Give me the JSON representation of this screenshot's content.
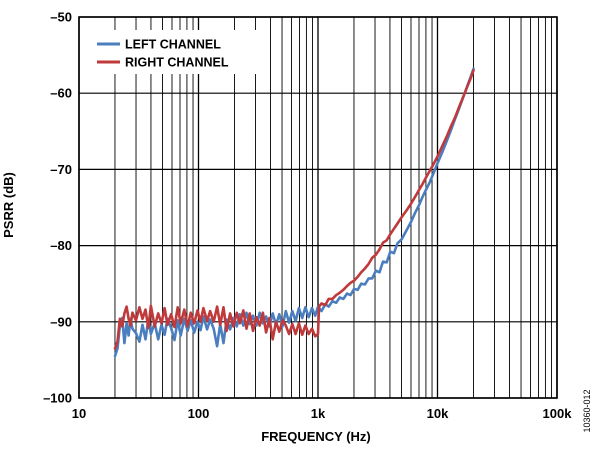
{
  "chart_data": {
    "type": "line",
    "title": "",
    "xlabel": "FREQUENCY (Hz)",
    "ylabel": "PSRR (dB)",
    "x_scale": "log",
    "xlim": [
      10,
      100000
    ],
    "ylim": [
      -100,
      -50
    ],
    "x_ticks": [
      {
        "value": 10,
        "label": "10"
      },
      {
        "value": 100,
        "label": "100"
      },
      {
        "value": 1000,
        "label": "1k"
      },
      {
        "value": 10000,
        "label": "10k"
      },
      {
        "value": 100000,
        "label": "100k"
      }
    ],
    "y_ticks": [
      {
        "value": -50,
        "label": "–50"
      },
      {
        "value": -60,
        "label": "–60"
      },
      {
        "value": -70,
        "label": "–70"
      },
      {
        "value": -80,
        "label": "–80"
      },
      {
        "value": -90,
        "label": "–90"
      },
      {
        "value": -100,
        "label": "–100"
      }
    ],
    "grid": true,
    "legend_position": "top-left",
    "figure_id": "10360-012",
    "series": [
      {
        "name": "LEFT CHANNEL",
        "color": "#4a7ebf",
        "points": [
          [
            20,
            -94.5
          ],
          [
            21,
            -93.5
          ],
          [
            22,
            -90.5
          ],
          [
            23,
            -89.5
          ],
          [
            24,
            -92.8
          ],
          [
            25,
            -90.2
          ],
          [
            26,
            -91.8
          ],
          [
            27,
            -89.6
          ],
          [
            28,
            -90.9
          ],
          [
            30,
            -91.5
          ],
          [
            32,
            -92.6
          ],
          [
            34,
            -90.4
          ],
          [
            36,
            -92.3
          ],
          [
            38,
            -89.7
          ],
          [
            40,
            -91.6
          ],
          [
            43,
            -90.2
          ],
          [
            46,
            -92.3
          ],
          [
            49,
            -90.4
          ],
          [
            52,
            -91.7
          ],
          [
            55,
            -89.6
          ],
          [
            59,
            -90.8
          ],
          [
            63,
            -92.4
          ],
          [
            67,
            -89.8
          ],
          [
            71,
            -91.8
          ],
          [
            76,
            -89.6
          ],
          [
            81,
            -91.2
          ],
          [
            86,
            -89.8
          ],
          [
            92,
            -91.4
          ],
          [
            98,
            -90.0
          ],
          [
            104,
            -91.1
          ],
          [
            110,
            -89.3
          ],
          [
            118,
            -91.0
          ],
          [
            125,
            -89.7
          ],
          [
            134,
            -90.9
          ],
          [
            143,
            -93.2
          ],
          [
            152,
            -90.3
          ],
          [
            162,
            -92.8
          ],
          [
            172,
            -89.7
          ],
          [
            184,
            -91.0
          ],
          [
            196,
            -89.5
          ],
          [
            209,
            -90.6
          ],
          [
            222,
            -89.0
          ],
          [
            237,
            -90.5
          ],
          [
            252,
            -88.8
          ],
          [
            268,
            -90.3
          ],
          [
            286,
            -89.2
          ],
          [
            305,
            -90.5
          ],
          [
            325,
            -88.8
          ],
          [
            346,
            -90.2
          ],
          [
            368,
            -89.3
          ],
          [
            392,
            -90.6
          ],
          [
            418,
            -88.9
          ],
          [
            445,
            -90.4
          ],
          [
            474,
            -89.0
          ],
          [
            505,
            -90.6
          ],
          [
            538,
            -88.6
          ],
          [
            573,
            -90.1
          ],
          [
            610,
            -88.6
          ],
          [
            650,
            -89.9
          ],
          [
            692,
            -88.2
          ],
          [
            737,
            -89.5
          ],
          [
            785,
            -88.1
          ],
          [
            836,
            -89.4
          ],
          [
            890,
            -88.2
          ],
          [
            948,
            -89.2
          ],
          [
            1000,
            -88.0
          ],
          [
            1070,
            -88.6
          ],
          [
            1150,
            -87.7
          ],
          [
            1230,
            -88.0
          ],
          [
            1320,
            -87.3
          ],
          [
            1420,
            -87.5
          ],
          [
            1520,
            -86.8
          ],
          [
            1630,
            -87.0
          ],
          [
            1750,
            -86.3
          ],
          [
            1870,
            -86.5
          ],
          [
            2000,
            -85.7
          ],
          [
            2150,
            -85.8
          ],
          [
            2300,
            -85.0
          ],
          [
            2470,
            -85.1
          ],
          [
            2650,
            -84.3
          ],
          [
            2840,
            -84.3
          ],
          [
            3050,
            -83.3
          ],
          [
            3270,
            -83.5
          ],
          [
            3500,
            -82.1
          ],
          [
            3760,
            -82.2
          ],
          [
            4030,
            -80.8
          ],
          [
            4320,
            -81.0
          ],
          [
            4630,
            -79.7
          ],
          [
            5000,
            -79.2
          ],
          [
            5500,
            -78.0
          ],
          [
            6000,
            -76.9
          ],
          [
            6500,
            -75.7
          ],
          [
            7000,
            -74.7
          ],
          [
            7500,
            -73.6
          ],
          [
            8000,
            -72.7
          ],
          [
            8600,
            -71.7
          ],
          [
            9200,
            -70.6
          ],
          [
            10000,
            -69.2
          ],
          [
            11000,
            -67.7
          ],
          [
            12000,
            -66.2
          ],
          [
            13000,
            -64.8
          ],
          [
            14000,
            -63.4
          ],
          [
            15000,
            -62.2
          ],
          [
            16000,
            -61.0
          ],
          [
            17000,
            -59.9
          ],
          [
            18000,
            -58.8
          ],
          [
            19000,
            -57.8
          ],
          [
            20000,
            -56.8
          ]
        ]
      },
      {
        "name": "RIGHT CHANNEL",
        "color": "#c0393b",
        "points": [
          [
            20,
            -93.5
          ],
          [
            21,
            -92.6
          ],
          [
            22,
            -89.6
          ],
          [
            23,
            -90.6
          ],
          [
            24,
            -88.9
          ],
          [
            25,
            -88.0
          ],
          [
            26,
            -89.6
          ],
          [
            27,
            -90.5
          ],
          [
            28,
            -88.8
          ],
          [
            30,
            -89.8
          ],
          [
            32,
            -88.1
          ],
          [
            34,
            -89.6
          ],
          [
            36,
            -88.4
          ],
          [
            38,
            -90.8
          ],
          [
            40,
            -87.9
          ],
          [
            43,
            -90.6
          ],
          [
            46,
            -88.9
          ],
          [
            49,
            -90.2
          ],
          [
            52,
            -88.2
          ],
          [
            55,
            -90.4
          ],
          [
            59,
            -89.0
          ],
          [
            63,
            -90.7
          ],
          [
            67,
            -88.1
          ],
          [
            71,
            -90.2
          ],
          [
            76,
            -88.4
          ],
          [
            81,
            -90.6
          ],
          [
            86,
            -88.8
          ],
          [
            92,
            -90.2
          ],
          [
            98,
            -88.5
          ],
          [
            104,
            -90.0
          ],
          [
            110,
            -88.2
          ],
          [
            118,
            -89.9
          ],
          [
            125,
            -88.6
          ],
          [
            134,
            -90.0
          ],
          [
            143,
            -88.0
          ],
          [
            152,
            -90.4
          ],
          [
            162,
            -88.1
          ],
          [
            172,
            -91.2
          ],
          [
            184,
            -88.9
          ],
          [
            196,
            -90.6
          ],
          [
            209,
            -88.8
          ],
          [
            222,
            -90.2
          ],
          [
            237,
            -88.5
          ],
          [
            252,
            -90.9
          ],
          [
            268,
            -88.9
          ],
          [
            286,
            -91.2
          ],
          [
            305,
            -89.4
          ],
          [
            325,
            -90.5
          ],
          [
            346,
            -88.8
          ],
          [
            368,
            -91.4
          ],
          [
            392,
            -89.5
          ],
          [
            418,
            -92.3
          ],
          [
            445,
            -90.0
          ],
          [
            474,
            -91.3
          ],
          [
            505,
            -89.8
          ],
          [
            538,
            -90.5
          ],
          [
            573,
            -91.6
          ],
          [
            610,
            -90.3
          ],
          [
            650,
            -91.6
          ],
          [
            692,
            -90.2
          ],
          [
            737,
            -91.7
          ],
          [
            785,
            -90.5
          ],
          [
            836,
            -91.6
          ],
          [
            890,
            -90.9
          ],
          [
            948,
            -91.9
          ],
          [
            1000,
            -91.6
          ],
          [
            1020,
            -88.0
          ],
          [
            1070,
            -87.6
          ],
          [
            1150,
            -87.8
          ],
          [
            1230,
            -87.0
          ],
          [
            1320,
            -87.0
          ],
          [
            1420,
            -86.5
          ],
          [
            1520,
            -86.2
          ],
          [
            1630,
            -85.8
          ],
          [
            1750,
            -85.3
          ],
          [
            1870,
            -84.9
          ],
          [
            2000,
            -84.6
          ],
          [
            2150,
            -84.1
          ],
          [
            2300,
            -83.5
          ],
          [
            2470,
            -83.0
          ],
          [
            2650,
            -82.4
          ],
          [
            2840,
            -81.6
          ],
          [
            3050,
            -81.2
          ],
          [
            3270,
            -80.5
          ],
          [
            3500,
            -79.6
          ],
          [
            3760,
            -79.3
          ],
          [
            4030,
            -78.5
          ],
          [
            4320,
            -77.8
          ],
          [
            4630,
            -77.1
          ],
          [
            5000,
            -76.3
          ],
          [
            5500,
            -75.4
          ],
          [
            6000,
            -74.5
          ],
          [
            6500,
            -73.6
          ],
          [
            7000,
            -72.7
          ],
          [
            7500,
            -71.9
          ],
          [
            8000,
            -71.1
          ],
          [
            8600,
            -70.2
          ],
          [
            9200,
            -69.4
          ],
          [
            10000,
            -68.3
          ],
          [
            11000,
            -66.9
          ],
          [
            12000,
            -65.6
          ],
          [
            13000,
            -64.3
          ],
          [
            14000,
            -63.2
          ],
          [
            15000,
            -62.0
          ],
          [
            16000,
            -60.9
          ],
          [
            17000,
            -59.9
          ],
          [
            18000,
            -58.9
          ],
          [
            19000,
            -58.0
          ],
          [
            20000,
            -57.0
          ]
        ]
      }
    ]
  }
}
